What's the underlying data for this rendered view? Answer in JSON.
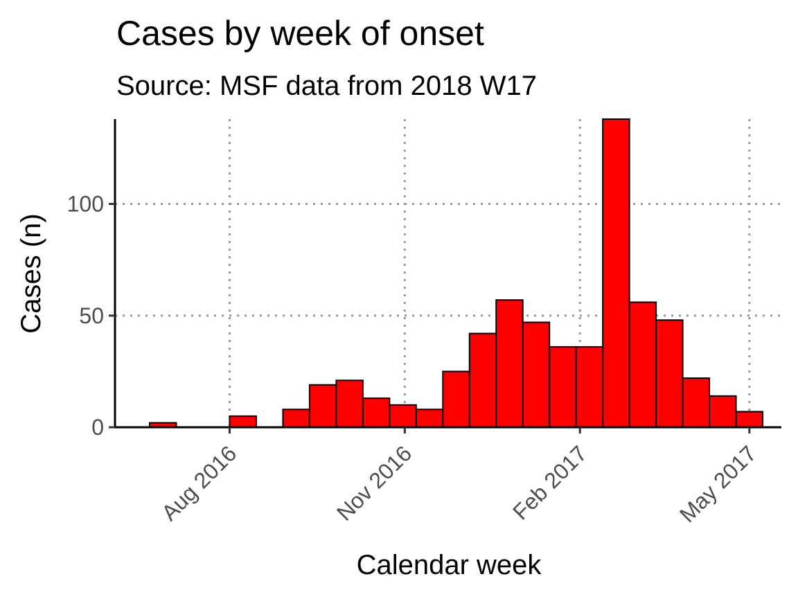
{
  "chart_data": {
    "type": "bar",
    "title": "Cases by week of onset",
    "subtitle": "Source: MSF data from 2018 W17",
    "xlabel": "Calendar week",
    "ylabel": "Cases (n)",
    "x_ticks": [
      "Aug 2016",
      "Nov 2016",
      "Feb 2017",
      "May 2017"
    ],
    "y_ticks": [
      0,
      50,
      100
    ],
    "ylim": [
      0,
      138
    ],
    "grid": true,
    "legend": "none",
    "bar_color": "#ff0000",
    "x": [
      "2016-06-06",
      "2016-06-20",
      "2016-07-04",
      "2016-07-18",
      "2016-08-01",
      "2016-08-15",
      "2016-08-29",
      "2016-09-12",
      "2016-09-26",
      "2016-10-10",
      "2016-10-24",
      "2016-11-07",
      "2016-11-21",
      "2016-12-05",
      "2016-12-19",
      "2017-01-02",
      "2017-01-16",
      "2017-01-30",
      "2017-02-13",
      "2017-02-27",
      "2017-03-13",
      "2017-03-27",
      "2017-04-10",
      "2017-04-24"
    ],
    "values": [
      0,
      2,
      0,
      0,
      5,
      0,
      8,
      19,
      21,
      13,
      10,
      8,
      25,
      42,
      57,
      47,
      36,
      36,
      138,
      56,
      48,
      22,
      14,
      7
    ]
  }
}
